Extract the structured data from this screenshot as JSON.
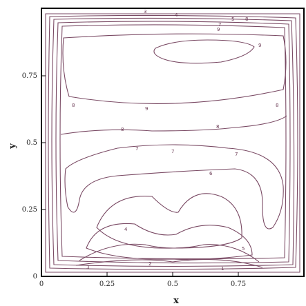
{
  "chart_data": {
    "type": "contour",
    "title": "",
    "xlabel": "x",
    "ylabel": "y",
    "xlim": [
      0,
      1
    ],
    "ylim": [
      0,
      1
    ],
    "x_ticks": [
      "0",
      "0.25",
      "0.5",
      "0.75"
    ],
    "y_ticks": [
      "0",
      "0.25",
      "0.5",
      "0.75"
    ],
    "line_color": "#7a4a64",
    "contour_labels_visible": [
      "1",
      "2",
      "3",
      "4",
      "5",
      "6",
      "7",
      "7",
      "8",
      "8",
      "8",
      "8",
      "9",
      "9",
      "9"
    ]
  }
}
